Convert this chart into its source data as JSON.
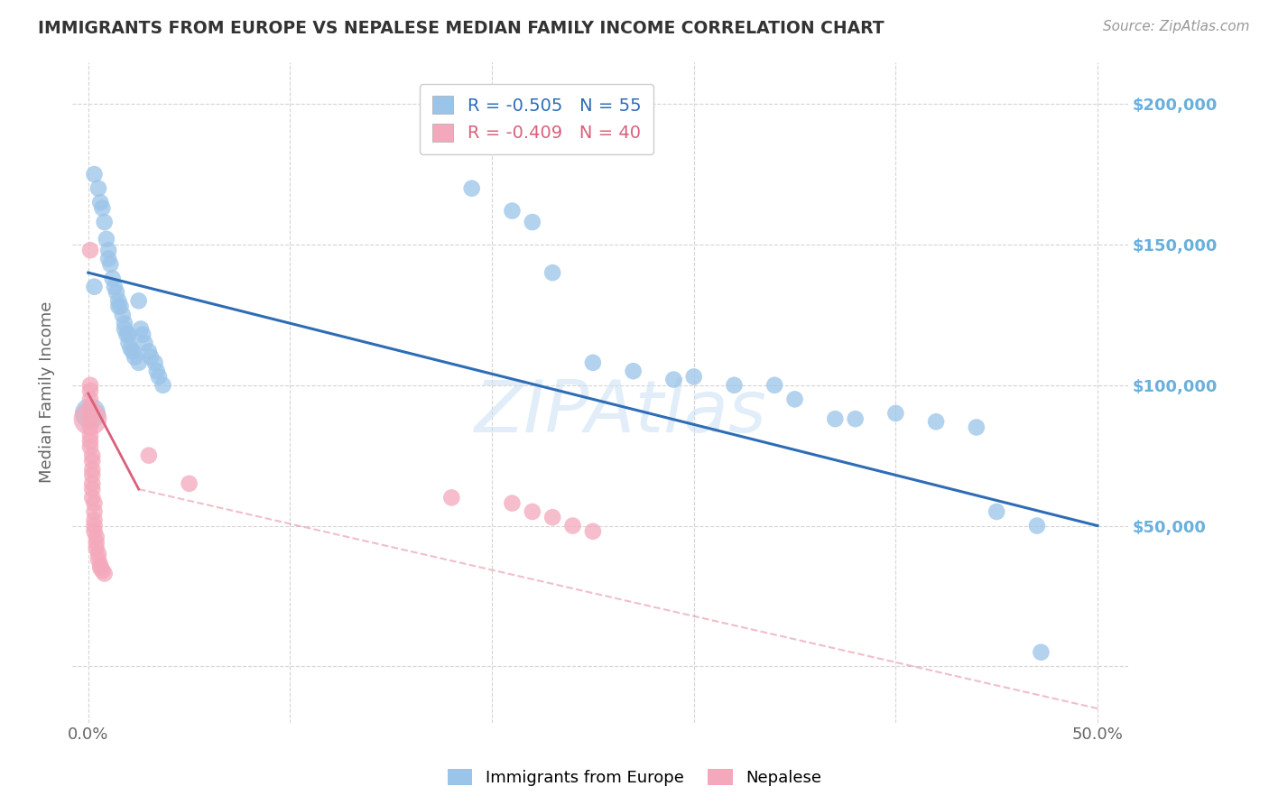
{
  "title": "IMMIGRANTS FROM EUROPE VS NEPALESE MEDIAN FAMILY INCOME CORRELATION CHART",
  "source": "Source: ZipAtlas.com",
  "ylabel": "Median Family Income",
  "watermark": "ZIPAtlas",
  "legend_blue": "R = -0.505   N = 55",
  "legend_pink": "R = -0.409   N = 40",
  "blue_scatter": [
    [
      0.003,
      175000
    ],
    [
      0.005,
      170000
    ],
    [
      0.006,
      165000
    ],
    [
      0.007,
      163000
    ],
    [
      0.008,
      158000
    ],
    [
      0.009,
      152000
    ],
    [
      0.01,
      148000
    ],
    [
      0.01,
      145000
    ],
    [
      0.011,
      143000
    ],
    [
      0.012,
      138000
    ],
    [
      0.013,
      135000
    ],
    [
      0.014,
      133000
    ],
    [
      0.015,
      130000
    ],
    [
      0.015,
      128000
    ],
    [
      0.016,
      128000
    ],
    [
      0.017,
      125000
    ],
    [
      0.018,
      122000
    ],
    [
      0.018,
      120000
    ],
    [
      0.019,
      118000
    ],
    [
      0.02,
      118000
    ],
    [
      0.02,
      115000
    ],
    [
      0.021,
      113000
    ],
    [
      0.022,
      112000
    ],
    [
      0.023,
      110000
    ],
    [
      0.025,
      108000
    ],
    [
      0.003,
      135000
    ],
    [
      0.025,
      130000
    ],
    [
      0.026,
      120000
    ],
    [
      0.027,
      118000
    ],
    [
      0.028,
      115000
    ],
    [
      0.03,
      112000
    ],
    [
      0.031,
      110000
    ],
    [
      0.033,
      108000
    ],
    [
      0.034,
      105000
    ],
    [
      0.035,
      103000
    ],
    [
      0.037,
      100000
    ],
    [
      0.19,
      170000
    ],
    [
      0.21,
      162000
    ],
    [
      0.22,
      158000
    ],
    [
      0.23,
      140000
    ],
    [
      0.25,
      108000
    ],
    [
      0.27,
      105000
    ],
    [
      0.29,
      102000
    ],
    [
      0.3,
      103000
    ],
    [
      0.32,
      100000
    ],
    [
      0.34,
      100000
    ],
    [
      0.35,
      95000
    ],
    [
      0.37,
      88000
    ],
    [
      0.38,
      88000
    ],
    [
      0.4,
      90000
    ],
    [
      0.42,
      87000
    ],
    [
      0.44,
      85000
    ],
    [
      0.45,
      55000
    ],
    [
      0.47,
      50000
    ],
    [
      0.472,
      5000
    ]
  ],
  "blue_scatter_big": [
    [
      0.001,
      90000,
      35
    ]
  ],
  "pink_scatter": [
    [
      0.001,
      148000
    ],
    [
      0.001,
      100000
    ],
    [
      0.001,
      98000
    ],
    [
      0.001,
      95000
    ],
    [
      0.001,
      92000
    ],
    [
      0.001,
      90000
    ],
    [
      0.001,
      88000
    ],
    [
      0.001,
      85000
    ],
    [
      0.001,
      82000
    ],
    [
      0.001,
      80000
    ],
    [
      0.001,
      78000
    ],
    [
      0.002,
      75000
    ],
    [
      0.002,
      73000
    ],
    [
      0.002,
      70000
    ],
    [
      0.002,
      68000
    ],
    [
      0.002,
      65000
    ],
    [
      0.002,
      63000
    ],
    [
      0.002,
      60000
    ],
    [
      0.003,
      58000
    ],
    [
      0.003,
      55000
    ],
    [
      0.003,
      52000
    ],
    [
      0.003,
      50000
    ],
    [
      0.003,
      48000
    ],
    [
      0.004,
      46000
    ],
    [
      0.004,
      44000
    ],
    [
      0.004,
      42000
    ],
    [
      0.005,
      40000
    ],
    [
      0.005,
      38000
    ],
    [
      0.006,
      36000
    ],
    [
      0.006,
      35000
    ],
    [
      0.007,
      34000
    ],
    [
      0.008,
      33000
    ],
    [
      0.03,
      75000
    ],
    [
      0.05,
      65000
    ],
    [
      0.18,
      60000
    ],
    [
      0.21,
      58000
    ],
    [
      0.22,
      55000
    ],
    [
      0.23,
      53000
    ],
    [
      0.24,
      50000
    ],
    [
      0.25,
      48000
    ]
  ],
  "blue_line": {
    "x": [
      0.0,
      0.5
    ],
    "y": [
      140000,
      50000
    ]
  },
  "pink_line_solid": {
    "x": [
      0.0,
      0.025
    ],
    "y": [
      97000,
      63000
    ]
  },
  "pink_line_dashed": {
    "x": [
      0.025,
      0.5
    ],
    "y": [
      63000,
      -15000
    ]
  },
  "yticks": [
    0,
    50000,
    100000,
    150000,
    200000
  ],
  "xticks": [
    0.0,
    0.1,
    0.2,
    0.3,
    0.4,
    0.5
  ],
  "xlim": [
    -0.008,
    0.515
  ],
  "ylim": [
    -20000,
    215000
  ],
  "blue_color": "#9ac4e8",
  "pink_color": "#f4a8bb",
  "blue_line_color": "#2e6db5",
  "pink_line_color": "#d9607a",
  "grid_color": "#d5d5d5",
  "title_color": "#333333",
  "source_color": "#999999",
  "ylabel_color": "#666666",
  "ytick_color": "#6ab0dc",
  "xtick_color": "#666666",
  "scatter_size": 180
}
